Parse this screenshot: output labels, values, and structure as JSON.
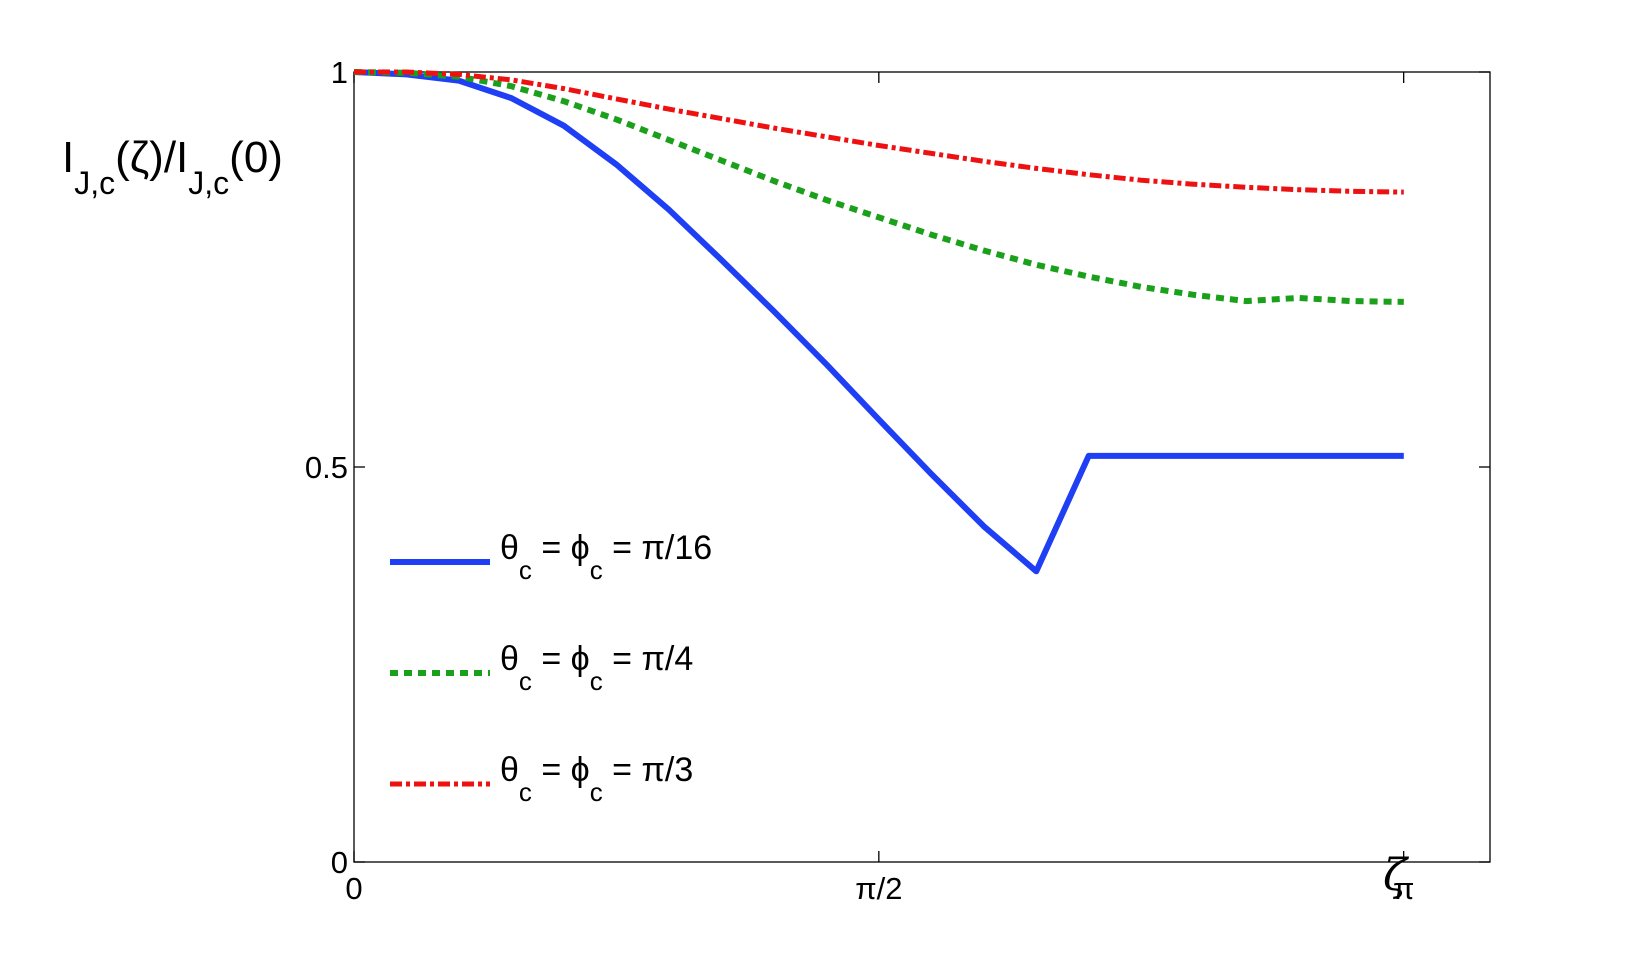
{
  "chart_data": {
    "type": "line",
    "title": "",
    "ylabel": {
      "main1": "I",
      "sub1": "J,c",
      "mid": "(ζ)/I",
      "sub2": "J,c",
      "tail": "(0)"
    },
    "xlabel": "ζ",
    "xlim": [
      0,
      3.4
    ],
    "ylim": [
      0,
      1
    ],
    "x_ticks": [
      {
        "value": 0,
        "label": "0"
      },
      {
        "value": 1.5708,
        "label": "π/2"
      },
      {
        "value": 3.1416,
        "label": "π"
      }
    ],
    "y_ticks": [
      {
        "value": 0,
        "label": "0"
      },
      {
        "value": 0.5,
        "label": "0.5"
      },
      {
        "value": 1,
        "label": "1"
      }
    ],
    "grid": false,
    "legend_position": "lower-left",
    "x": [
      0,
      0.157,
      0.314,
      0.471,
      0.628,
      0.785,
      0.942,
      1.1,
      1.257,
      1.414,
      1.571,
      1.728,
      1.885,
      2.042,
      2.199,
      2.356,
      2.513,
      2.67,
      2.827,
      2.985,
      3.142
    ],
    "series": [
      {
        "name": "θ_c = ϕ_c = π/16",
        "legend": {
          "a": "θ",
          "asub": "c",
          "b": " = ϕ",
          "bsub": "c",
          "c": " = π/16"
        },
        "color": "#1f3ff5",
        "style": "solid",
        "values": [
          1.0,
          0.997,
          0.989,
          0.967,
          0.932,
          0.883,
          0.826,
          0.762,
          0.697,
          0.63,
          0.56,
          0.491,
          0.425,
          0.368,
          0.514,
          0.514,
          0.514,
          0.514,
          0.514,
          0.514,
          0.514
        ]
      },
      {
        "name": "θ_c = ϕ_c = π/4",
        "legend": {
          "a": "θ",
          "asub": "c",
          "b": " = ϕ",
          "bsub": "c",
          "c": " = π/4"
        },
        "color": "#1aa01a",
        "style": "dotted",
        "values": [
          1.0,
          0.999,
          0.994,
          0.982,
          0.963,
          0.94,
          0.914,
          0.888,
          0.862,
          0.838,
          0.816,
          0.794,
          0.774,
          0.756,
          0.741,
          0.728,
          0.718,
          0.71,
          0.714,
          0.71,
          0.709
        ]
      },
      {
        "name": "θ_c = ϕ_c = π/3",
        "legend": {
          "a": "θ",
          "asub": "c",
          "b": " = ϕ",
          "bsub": "c",
          "c": " = π/3"
        },
        "color": "#ee1111",
        "style": "dashdot",
        "values": [
          1.0,
          1.0,
          0.997,
          0.99,
          0.979,
          0.966,
          0.953,
          0.941,
          0.929,
          0.918,
          0.907,
          0.897,
          0.887,
          0.878,
          0.87,
          0.863,
          0.858,
          0.854,
          0.851,
          0.849,
          0.848
        ]
      }
    ]
  }
}
